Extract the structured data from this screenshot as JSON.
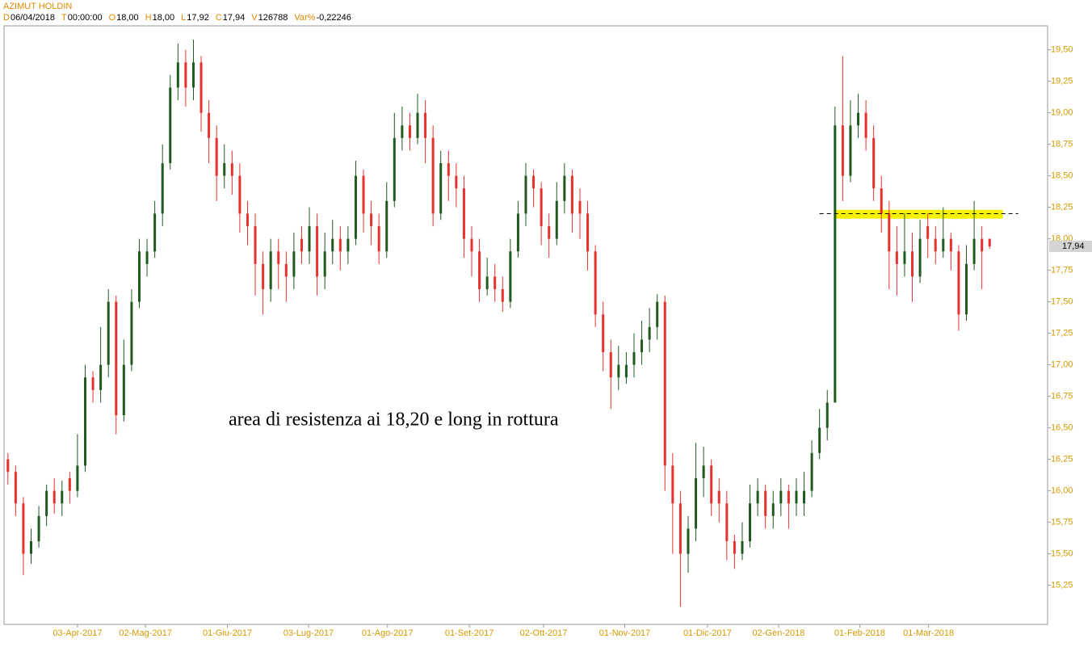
{
  "chart_data": {
    "type": "candlestick",
    "title": "AZIMUT HOLDIN",
    "header": [
      {
        "label": "D",
        "value": "06/04/2018"
      },
      {
        "label": "T",
        "value": "00:00:00"
      },
      {
        "label": "O",
        "value": "18,00"
      },
      {
        "label": "H",
        "value": "18,00"
      },
      {
        "label": "L",
        "value": "17,92"
      },
      {
        "label": "C",
        "value": "17,94"
      },
      {
        "label": "V",
        "value": "126788"
      },
      {
        "label": "Var%",
        "value": "-0,22246"
      }
    ],
    "open": [
      16.25,
      16.15,
      15.9,
      15.5,
      15.6,
      15.8,
      16.0,
      15.9,
      16.1,
      16.0,
      16.2,
      16.9,
      16.8,
      17.0,
      17.5,
      16.6,
      17.0,
      17.5,
      17.8,
      17.9,
      18.2,
      18.6,
      19.2,
      19.4,
      19.2,
      19.4,
      19.0,
      18.8,
      18.5,
      18.6,
      18.5,
      18.2,
      18.1,
      17.8,
      17.6,
      17.9,
      17.8,
      17.7,
      18.0,
      17.9,
      18.1,
      17.7,
      17.9,
      18.0,
      17.9,
      18.0,
      18.5,
      18.2,
      18.1,
      17.9,
      18.3,
      18.8,
      18.9,
      18.8,
      19.0,
      18.8,
      18.2,
      18.6,
      18.5,
      18.4,
      18.0,
      17.9,
      17.6,
      17.7,
      17.6,
      17.5,
      17.9,
      18.2,
      18.5,
      18.4,
      18.1,
      18.0,
      18.3,
      18.5,
      18.3,
      18.2,
      17.9,
      17.4,
      17.1,
      16.9,
      16.9,
      17.0,
      17.1,
      17.2,
      17.3,
      17.5,
      16.2,
      15.9,
      15.5,
      15.7,
      16.1,
      16.2,
      16.0,
      15.9,
      15.6,
      15.5,
      15.6,
      15.9,
      16.0,
      15.8,
      15.9,
      16.0,
      15.9,
      15.9,
      16.0,
      16.3,
      16.5,
      16.7,
      18.9,
      18.5,
      18.9,
      19.0,
      18.8,
      18.4,
      18.2,
      17.9,
      17.8,
      17.9,
      17.7,
      18.1,
      18.0,
      17.9,
      18.0,
      17.9,
      17.4,
      17.8,
      18.0,
      18.0
    ],
    "high": [
      16.3,
      16.2,
      15.95,
      15.7,
      15.88,
      16.05,
      16.1,
      16.08,
      16.15,
      16.45,
      17.0,
      16.95,
      17.3,
      17.6,
      17.55,
      17.2,
      17.6,
      18.0,
      18.0,
      18.3,
      18.75,
      19.3,
      19.55,
      19.5,
      19.58,
      19.45,
      19.1,
      18.9,
      18.75,
      18.7,
      18.6,
      18.3,
      18.2,
      17.9,
      18.0,
      18.0,
      17.9,
      18.05,
      18.1,
      18.25,
      18.2,
      18.05,
      18.15,
      18.1,
      18.1,
      18.62,
      18.55,
      18.3,
      18.2,
      18.45,
      19.0,
      19.05,
      19.0,
      19.15,
      19.1,
      18.9,
      18.7,
      18.7,
      18.6,
      18.5,
      18.1,
      18.0,
      17.85,
      17.8,
      17.7,
      18.0,
      18.3,
      18.6,
      18.55,
      18.45,
      18.2,
      18.45,
      18.6,
      18.55,
      18.4,
      18.3,
      17.95,
      17.5,
      17.2,
      17.15,
      17.1,
      17.25,
      17.35,
      17.45,
      17.56,
      17.55,
      16.3,
      16.0,
      15.8,
      16.38,
      16.35,
      16.25,
      16.1,
      16.0,
      15.65,
      15.75,
      16.05,
      16.1,
      16.05,
      16.0,
      16.1,
      16.05,
      16.1,
      16.15,
      16.4,
      16.65,
      16.8,
      19.05,
      19.45,
      19.1,
      19.15,
      19.1,
      18.9,
      18.5,
      18.3,
      18.1,
      18.2,
      18.05,
      18.15,
      18.2,
      18.1,
      18.25,
      18.05,
      17.95,
      17.95,
      18.3,
      18.1,
      18.0
    ],
    "low": [
      16.05,
      15.8,
      15.33,
      15.42,
      15.55,
      15.72,
      15.82,
      15.8,
      15.9,
      15.95,
      16.15,
      16.7,
      16.7,
      16.9,
      16.45,
      16.55,
      16.95,
      17.45,
      17.7,
      17.85,
      18.1,
      18.55,
      19.1,
      19.05,
      19.1,
      18.85,
      18.6,
      18.3,
      18.4,
      18.35,
      18.05,
      17.95,
      17.55,
      17.4,
      17.5,
      17.6,
      17.5,
      17.6,
      17.8,
      17.8,
      17.55,
      17.6,
      17.8,
      17.75,
      17.8,
      17.95,
      18.05,
      17.95,
      17.8,
      17.85,
      18.25,
      18.7,
      18.7,
      18.75,
      18.6,
      18.1,
      18.15,
      18.3,
      18.25,
      17.85,
      17.7,
      17.5,
      17.55,
      17.5,
      17.42,
      17.45,
      17.85,
      18.1,
      18.25,
      17.95,
      17.85,
      17.95,
      18.2,
      18.05,
      18.0,
      17.75,
      17.3,
      16.95,
      16.65,
      16.8,
      16.85,
      16.9,
      17.0,
      17.1,
      17.2,
      16.0,
      15.5,
      15.08,
      15.35,
      15.6,
      15.95,
      15.8,
      15.75,
      15.45,
      15.38,
      15.45,
      15.55,
      15.8,
      15.7,
      15.7,
      15.8,
      15.7,
      15.8,
      15.8,
      15.95,
      16.25,
      16.4,
      16.7,
      18.3,
      18.45,
      18.8,
      18.7,
      18.3,
      18.05,
      17.6,
      17.55,
      17.7,
      17.5,
      17.65,
      17.85,
      17.8,
      17.85,
      17.75,
      17.27,
      17.35,
      17.75,
      17.6,
      17.92
    ],
    "close": [
      16.15,
      15.9,
      15.5,
      15.6,
      15.8,
      16.0,
      15.9,
      16.0,
      16.0,
      16.2,
      16.9,
      16.8,
      17.0,
      17.5,
      16.6,
      17.0,
      17.5,
      17.9,
      17.9,
      18.2,
      18.6,
      19.2,
      19.4,
      19.2,
      19.4,
      19.0,
      18.8,
      18.5,
      18.6,
      18.5,
      18.2,
      18.1,
      17.8,
      17.6,
      17.9,
      17.8,
      17.7,
      17.9,
      17.9,
      18.1,
      17.7,
      17.9,
      18.0,
      17.9,
      18.0,
      18.5,
      18.2,
      18.1,
      17.9,
      18.3,
      18.8,
      18.9,
      18.8,
      19.0,
      18.8,
      18.2,
      18.6,
      18.5,
      18.4,
      18.0,
      17.9,
      17.6,
      17.7,
      17.6,
      17.5,
      17.9,
      18.2,
      18.5,
      18.4,
      18.1,
      18.0,
      18.3,
      18.5,
      18.2,
      18.2,
      17.9,
      17.4,
      17.1,
      16.9,
      17.0,
      17.0,
      17.1,
      17.2,
      17.3,
      17.5,
      16.2,
      15.9,
      15.5,
      15.7,
      16.1,
      16.2,
      15.9,
      15.9,
      15.6,
      15.5,
      15.6,
      15.9,
      16.0,
      15.8,
      15.9,
      16.0,
      15.9,
      16.0,
      16.0,
      16.3,
      16.5,
      16.7,
      18.9,
      18.5,
      18.9,
      19.0,
      18.8,
      18.4,
      18.2,
      17.9,
      17.8,
      17.9,
      17.7,
      18.0,
      18.0,
      17.9,
      18.0,
      17.9,
      17.4,
      17.8,
      18.0,
      17.9,
      17.94
    ],
    "up_color": "#1f5a1f",
    "down_color": "#e8302c",
    "xlim": [
      -0.5,
      134.5
    ],
    "xticks": [
      {
        "value": 9,
        "label": "03-Apr-2017"
      },
      {
        "value": 17.8,
        "label": "02-Mag-2017"
      },
      {
        "value": 28.4,
        "label": "01-Giu-2017"
      },
      {
        "value": 38.9,
        "label": "03-Lug-2017"
      },
      {
        "value": 49.1,
        "label": "01-Ago-2017"
      },
      {
        "value": 59.7,
        "label": "01-Set-2017"
      },
      {
        "value": 69.3,
        "label": "02-Ott-2017"
      },
      {
        "value": 79.8,
        "label": "01-Nov-2017"
      },
      {
        "value": 90.5,
        "label": "01-Dic-2017"
      },
      {
        "value": 99.7,
        "label": "02-Gen-2018"
      },
      {
        "value": 110.2,
        "label": "01-Feb-2018"
      },
      {
        "value": 119.1,
        "label": "01-Mar-2018"
      }
    ],
    "ylim": [
      14.94,
      19.69
    ],
    "yticks": [
      {
        "value": 15.25,
        "label": "15,25"
      },
      {
        "value": 15.5,
        "label": "15,50"
      },
      {
        "value": 15.75,
        "label": "15,75"
      },
      {
        "value": 16,
        "label": "16,00"
      },
      {
        "value": 16.25,
        "label": "16,25"
      },
      {
        "value": 16.5,
        "label": "16,50"
      },
      {
        "value": 16.75,
        "label": "16,75"
      },
      {
        "value": 17,
        "label": "17,00"
      },
      {
        "value": 17.25,
        "label": "17,25"
      },
      {
        "value": 17.5,
        "label": "17,50"
      },
      {
        "value": 17.75,
        "label": "17,75"
      },
      {
        "value": 18,
        "label": "18,00"
      },
      {
        "value": 18.25,
        "label": "18,25"
      },
      {
        "value": 18.5,
        "label": "18,50"
      },
      {
        "value": 18.75,
        "label": "18,75"
      },
      {
        "value": 19,
        "label": "19,00"
      },
      {
        "value": 19.25,
        "label": "19,25"
      },
      {
        "value": 19.5,
        "label": "19,50"
      }
    ],
    "last_price": {
      "value": 17.94,
      "label": "17,94"
    },
    "resistance_band": {
      "from": 107,
      "to": 128.7,
      "low": 18.16,
      "high": 18.23,
      "color": "#f5f000"
    },
    "resistance_line": {
      "value": 18.2,
      "from": 105,
      "to": 130.7
    },
    "annotation": "area di resistenza ai 18,20 e long in rottura"
  }
}
